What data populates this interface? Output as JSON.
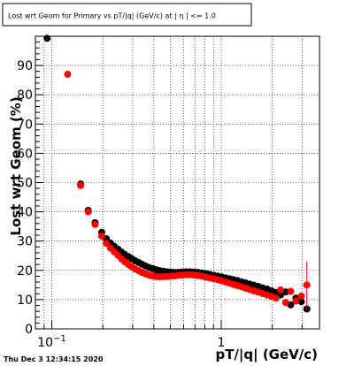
{
  "title": "Lost wrt Geom for Primary vs pT/|q| (GeV/c) at | η | <= 1.0",
  "timestamp": "Thu Dec  3 12:34:15 2020",
  "chart_data": {
    "type": "scatter",
    "title": "Lost wrt Geom for Primary vs pT/|q| (GeV/c) at | η | <= 1.0",
    "xlabel": "pT/|q| (GeV/c)",
    "ylabel": "Lost wrt Geom (%)",
    "xscale": "log",
    "xlim": [
      0.08,
      3.8
    ],
    "ylim": [
      0,
      100
    ],
    "grid": true,
    "x_tick_labels": [
      {
        "value": 0.1,
        "label": "10",
        "sup": "−1"
      },
      {
        "value": 1,
        "label": "1",
        "sup": ""
      }
    ],
    "y_ticks": [
      0,
      10,
      20,
      30,
      40,
      50,
      60,
      70,
      80,
      90
    ],
    "colors": {
      "series_black": "#000000",
      "series_red": "#ff0000"
    },
    "series": [
      {
        "color": "#000000",
        "points": [
          {
            "x": 0.0938,
            "y": 99.3
          },
          {
            "x": 0.148,
            "y": 49.5
          },
          {
            "x": 0.164,
            "y": 40.5
          },
          {
            "x": 0.18,
            "y": 36.3
          },
          {
            "x": 0.197,
            "y": 33.0
          },
          {
            "x": 0.21,
            "y": 30.8
          },
          {
            "x": 0.222,
            "y": 29.3
          },
          {
            "x": 0.234,
            "y": 28.2
          },
          {
            "x": 0.246,
            "y": 27.2
          },
          {
            "x": 0.258,
            "y": 26.2
          },
          {
            "x": 0.27,
            "y": 25.4
          },
          {
            "x": 0.283,
            "y": 24.7
          },
          {
            "x": 0.296,
            "y": 24.0
          },
          {
            "x": 0.31,
            "y": 23.3
          },
          {
            "x": 0.325,
            "y": 22.7
          },
          {
            "x": 0.34,
            "y": 22.1
          },
          {
            "x": 0.357,
            "y": 21.5
          },
          {
            "x": 0.374,
            "y": 21.0
          },
          {
            "x": 0.392,
            "y": 20.6
          },
          {
            "x": 0.412,
            "y": 20.2
          },
          {
            "x": 0.432,
            "y": 19.9
          },
          {
            "x": 0.455,
            "y": 19.7
          },
          {
            "x": 0.478,
            "y": 19.5
          },
          {
            "x": 0.503,
            "y": 19.4
          },
          {
            "x": 0.53,
            "y": 19.3
          },
          {
            "x": 0.558,
            "y": 19.3
          },
          {
            "x": 0.588,
            "y": 19.4
          },
          {
            "x": 0.62,
            "y": 19.5
          },
          {
            "x": 0.654,
            "y": 19.5
          },
          {
            "x": 0.69,
            "y": 19.4
          },
          {
            "x": 0.728,
            "y": 19.3
          },
          {
            "x": 0.768,
            "y": 19.1
          },
          {
            "x": 0.81,
            "y": 18.9
          },
          {
            "x": 0.855,
            "y": 18.6
          },
          {
            "x": 0.903,
            "y": 18.3
          },
          {
            "x": 0.953,
            "y": 18.0
          },
          {
            "x": 1.006,
            "y": 17.7
          },
          {
            "x": 1.062,
            "y": 17.4
          },
          {
            "x": 1.12,
            "y": 17.1
          },
          {
            "x": 1.18,
            "y": 16.8
          },
          {
            "x": 1.245,
            "y": 16.5
          },
          {
            "x": 1.315,
            "y": 16.1
          },
          {
            "x": 1.39,
            "y": 15.7
          },
          {
            "x": 1.47,
            "y": 15.3
          },
          {
            "x": 1.555,
            "y": 14.9
          },
          {
            "x": 1.65,
            "y": 14.5
          },
          {
            "x": 1.75,
            "y": 14.0
          },
          {
            "x": 1.86,
            "y": 13.6
          },
          {
            "x": 1.98,
            "y": 13.0
          },
          {
            "x": 2.1,
            "y": 12.4
          },
          {
            "x": 2.24,
            "y": 11.6
          },
          {
            "x": 2.4,
            "y": 12.6
          },
          {
            "x": 2.57,
            "y": 8.2
          },
          {
            "x": 2.76,
            "y": 10.5
          },
          {
            "x": 2.97,
            "y": 9.3
          },
          {
            "x": 3.2,
            "y": 6.8
          }
        ]
      },
      {
        "color": "#ff0000",
        "points": [
          {
            "x": 0.124,
            "y": 87.0
          },
          {
            "x": 0.148,
            "y": 49.0
          },
          {
            "x": 0.164,
            "y": 40.0
          },
          {
            "x": 0.18,
            "y": 35.7
          },
          {
            "x": 0.197,
            "y": 31.7
          },
          {
            "x": 0.21,
            "y": 29.2
          },
          {
            "x": 0.222,
            "y": 27.6
          },
          {
            "x": 0.234,
            "y": 26.3
          },
          {
            "x": 0.246,
            "y": 25.1
          },
          {
            "x": 0.258,
            "y": 23.9
          },
          {
            "x": 0.27,
            "y": 22.9
          },
          {
            "x": 0.283,
            "y": 22.0
          },
          {
            "x": 0.296,
            "y": 21.2
          },
          {
            "x": 0.31,
            "y": 20.5
          },
          {
            "x": 0.325,
            "y": 19.9
          },
          {
            "x": 0.34,
            "y": 19.3
          },
          {
            "x": 0.357,
            "y": 18.8
          },
          {
            "x": 0.374,
            "y": 18.4
          },
          {
            "x": 0.392,
            "y": 18.1
          },
          {
            "x": 0.412,
            "y": 17.9
          },
          {
            "x": 0.432,
            "y": 17.8
          },
          {
            "x": 0.455,
            "y": 17.8
          },
          {
            "x": 0.478,
            "y": 17.9
          },
          {
            "x": 0.503,
            "y": 18.0
          },
          {
            "x": 0.53,
            "y": 18.1
          },
          {
            "x": 0.558,
            "y": 18.3
          },
          {
            "x": 0.588,
            "y": 18.4
          },
          {
            "x": 0.62,
            "y": 18.5
          },
          {
            "x": 0.654,
            "y": 18.5
          },
          {
            "x": 0.69,
            "y": 18.4
          },
          {
            "x": 0.728,
            "y": 18.2
          },
          {
            "x": 0.768,
            "y": 18.0
          },
          {
            "x": 0.81,
            "y": 17.7
          },
          {
            "x": 0.855,
            "y": 17.4
          },
          {
            "x": 0.903,
            "y": 17.1
          },
          {
            "x": 0.953,
            "y": 16.8
          },
          {
            "x": 1.006,
            "y": 16.4
          },
          {
            "x": 1.062,
            "y": 16.0
          },
          {
            "x": 1.12,
            "y": 15.6
          },
          {
            "x": 1.18,
            "y": 15.2
          },
          {
            "x": 1.245,
            "y": 14.8
          },
          {
            "x": 1.315,
            "y": 14.4
          },
          {
            "x": 1.39,
            "y": 13.9
          },
          {
            "x": 1.47,
            "y": 13.5
          },
          {
            "x": 1.555,
            "y": 13.0
          },
          {
            "x": 1.65,
            "y": 12.6
          },
          {
            "x": 1.75,
            "y": 12.1
          },
          {
            "x": 1.86,
            "y": 11.6
          },
          {
            "x": 1.98,
            "y": 11.1
          },
          {
            "x": 2.1,
            "y": 10.5
          },
          {
            "x": 2.24,
            "y": 13.3
          },
          {
            "x": 2.4,
            "y": 9.0
          },
          {
            "x": 2.57,
            "y": 12.8
          },
          {
            "x": 2.76,
            "y": 9.5
          },
          {
            "x": 2.97,
            "y": 11.2
          },
          {
            "x": 3.2,
            "y": 15.0,
            "err": 8.0
          }
        ]
      }
    ]
  }
}
